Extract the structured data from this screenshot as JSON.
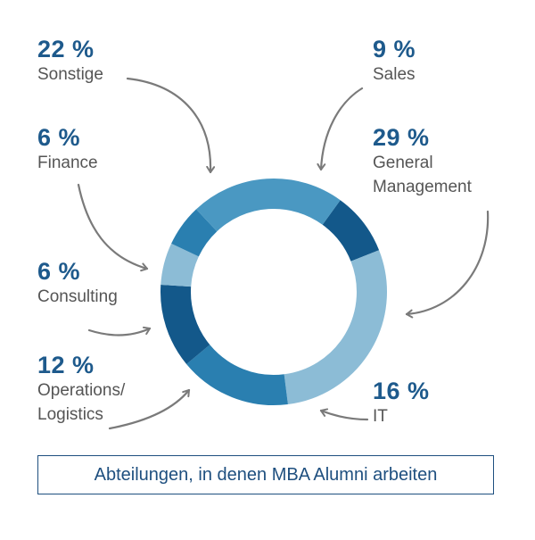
{
  "chart_data": {
    "type": "pie",
    "variant": "donut",
    "slices": [
      {
        "label": "Sales",
        "value": 9,
        "value_label": "9 %",
        "color": "#13588a"
      },
      {
        "label": "General Management",
        "label_lines": [
          "General",
          "Management"
        ],
        "value": 29,
        "value_label": "29 %",
        "color": "#8cbcd6"
      },
      {
        "label": "IT",
        "value": 16,
        "value_label": "16 %",
        "color": "#2a7fb0"
      },
      {
        "label": "Operations/ Logistics",
        "label_lines": [
          "Operations/",
          "Logistics"
        ],
        "value": 12,
        "value_label": "12 %",
        "color": "#13588a"
      },
      {
        "label": "Consulting",
        "value": 6,
        "value_label": "6 %",
        "color": "#8cbcd6"
      },
      {
        "label": "Finance",
        "value": 6,
        "value_label": "6 %",
        "color": "#2a7fb0"
      },
      {
        "label": "Sonstige",
        "value": 22,
        "value_label": "22 %",
        "color": "#4a98c2"
      }
    ],
    "caption": "Abteilungen, in denen MBA Alumni arbeiten"
  },
  "colors": {
    "value_text": "#1e5a8c",
    "label_text": "#555555",
    "arrow": "#7a7a7a",
    "caption_border": "#1e4f7f",
    "caption_text": "#1e4f7f"
  }
}
